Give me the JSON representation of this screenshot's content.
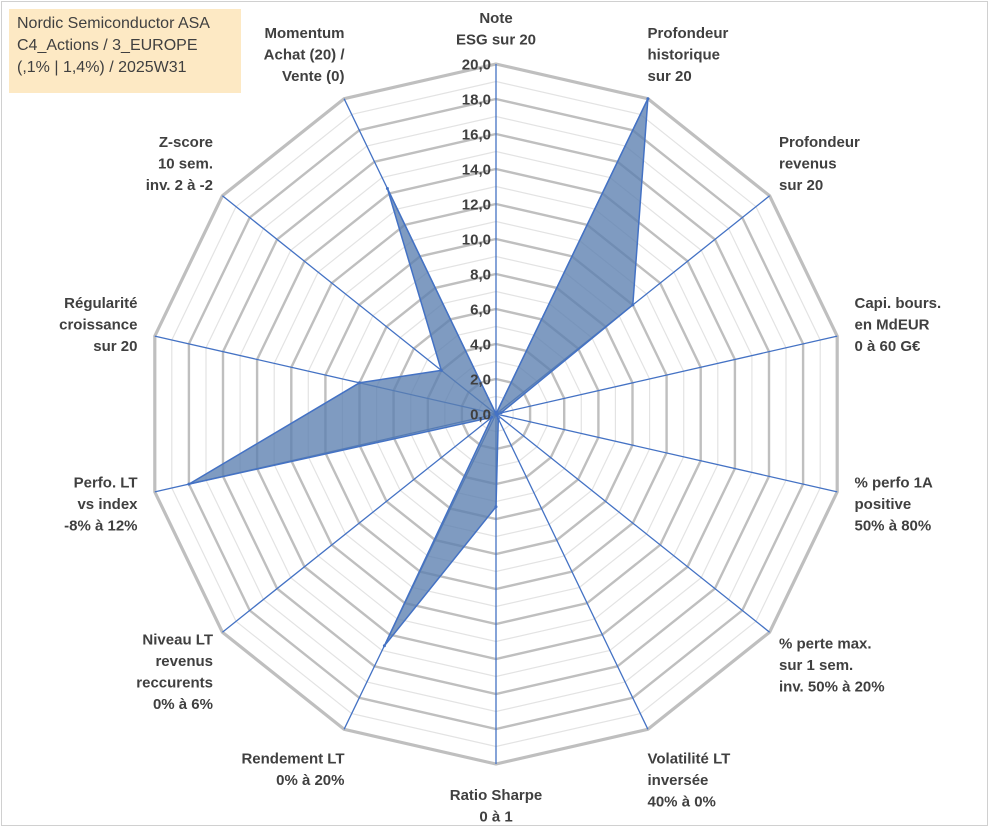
{
  "title_box": {
    "line1": "Nordic Semiconductor ASA",
    "line2": "C4_Actions / 3_EUROPE",
    "line3": "(,1% | 1,4%) / 2025W31"
  },
  "chart_data": {
    "type": "radar",
    "r_min": 0,
    "r_max": 20,
    "r_step": 2,
    "minor_step": 1,
    "grid": true,
    "tick_labels": [
      "0,0",
      "2,0",
      "4,0",
      "6,0",
      "8,0",
      "10,0",
      "12,0",
      "14,0",
      "16,0",
      "18,0",
      "20,0"
    ],
    "axes": [
      {
        "label": [
          "Note",
          "ESG sur 20"
        ],
        "value": 0
      },
      {
        "label": [
          "Profondeur",
          "historique",
          "sur 20"
        ],
        "value": 20
      },
      {
        "label": [
          "Profondeur",
          "revenus",
          "sur 20"
        ],
        "value": 10
      },
      {
        "label": [
          "Capi. bours.",
          "en MdEUR",
          "0 à 60 G€"
        ],
        "value": 0.3
      },
      {
        "label": [
          "% perfo 1A",
          "positive",
          "50% à 80%"
        ],
        "value": 0
      },
      {
        "label": [
          "% perte max.",
          "sur 1 sem.",
          "inv. 50% à 20%"
        ],
        "value": 0
      },
      {
        "label": [
          "Volatilité LT",
          "inversée",
          "40% à 0%"
        ],
        "value": 0.3
      },
      {
        "label": [
          "Ratio Sharpe",
          "0 à 1"
        ],
        "value": 5.3
      },
      {
        "label": [
          "Rendement LT",
          "0% à 20%"
        ],
        "value": 14.7
      },
      {
        "label": [
          "Niveau LT",
          "revenus",
          "reccurents",
          "0% à 6%"
        ],
        "value": 0.3
      },
      {
        "label": [
          "Perfo. LT",
          "vs index",
          "-8% à 12%"
        ],
        "value": 18
      },
      {
        "label": [
          "Régularité",
          "croissance",
          "sur 20"
        ],
        "value": 8
      },
      {
        "label": [
          "Z-score",
          "10 sem.",
          "inv. 2 à -2"
        ],
        "value": 4
      },
      {
        "label": [
          "Momentum",
          "Achat (20) /",
          "Vente (0)"
        ],
        "value": 14.3
      }
    ],
    "colors": {
      "fill": "#5b7fb0",
      "stroke": "#4472c4",
      "spoke": "#4472c4",
      "major_grid": "#bfbfbf",
      "minor_grid": "#e3e3e3"
    }
  }
}
